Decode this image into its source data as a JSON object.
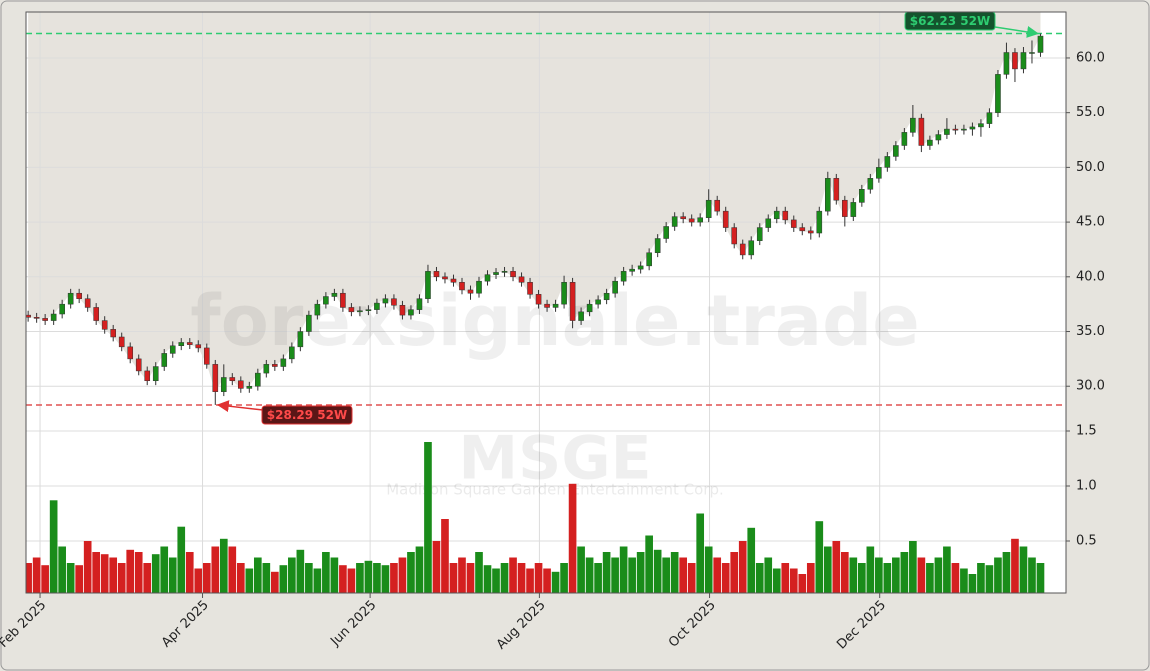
{
  "chart_data": {
    "type": "candlestick",
    "watermark": "forexsignale.trade",
    "symbol": "MSGE",
    "company_name": "Madison Square Garden Entertainment Corp.",
    "up_color": "#1a8c1a",
    "down_color": "#d42020",
    "area_color": "#e6e3dd",
    "grid": true,
    "xlim": [
      -0.25,
      122
    ],
    "xticks": [
      {
        "value": 1.4,
        "label": "Feb 2025"
      },
      {
        "value": 20.5,
        "label": "Apr 2025"
      },
      {
        "value": 40.2,
        "label": "Jun 2025"
      },
      {
        "value": 60.1,
        "label": "Aug 2025"
      },
      {
        "value": 80.1,
        "label": "Oct 2025"
      },
      {
        "value": 100.1,
        "label": "Dec 2025"
      }
    ],
    "ylim": [
      26,
      64.2
    ],
    "yticks": [
      {
        "value": 30,
        "label": "30.0"
      },
      {
        "value": 35,
        "label": "35.0"
      },
      {
        "value": 40,
        "label": "40.0"
      },
      {
        "value": 45,
        "label": "45.0"
      },
      {
        "value": 50,
        "label": "50.0"
      },
      {
        "value": 55,
        "label": "55.0"
      },
      {
        "value": 60,
        "label": "60.0"
      }
    ],
    "high_52w": {
      "value": 62.23,
      "label": "$62.23 52W",
      "color": "#2ecc71"
    },
    "low_52w": {
      "value": 28.29,
      "label": "$28.29 52W",
      "color": "#e05050"
    },
    "open": [
      36.5,
      36.3,
      36.2,
      36.0,
      36.6,
      37.5,
      38.5,
      38.0,
      37.2,
      36.0,
      35.2,
      34.5,
      33.6,
      32.5,
      31.4,
      30.5,
      31.8,
      33.0,
      33.7,
      34.0,
      33.8,
      33.5,
      32.0,
      29.5,
      30.8,
      30.5,
      29.8,
      30.0,
      31.2,
      32.0,
      31.8,
      32.5,
      33.6,
      35.0,
      36.5,
      37.5,
      38.2,
      38.5,
      37.2,
      36.8,
      36.9,
      37.0,
      37.6,
      38.0,
      37.4,
      36.5,
      37.0,
      38.0,
      40.5,
      40.0,
      39.8,
      39.5,
      38.8,
      38.5,
      39.6,
      40.2,
      40.4,
      40.5,
      40.0,
      39.5,
      38.4,
      37.5,
      37.2,
      37.5,
      39.5,
      36.0,
      36.8,
      37.5,
      37.9,
      38.5,
      39.6,
      40.5,
      40.7,
      41.0,
      42.2,
      43.5,
      44.6,
      45.5,
      45.3,
      45.0,
      45.4,
      47.0,
      46.0,
      44.5,
      43.0,
      42.0,
      43.3,
      44.5,
      45.3,
      46.0,
      45.2,
      44.5,
      44.2,
      44.0,
      46.0,
      49.0,
      47.0,
      45.5,
      46.8,
      48.0,
      49.0,
      50.0,
      51.0,
      52.0,
      53.2,
      54.5,
      52.0,
      52.5,
      53.0,
      53.5,
      53.4,
      53.5,
      53.7,
      54.0,
      55.0,
      58.5,
      60.5,
      59.0,
      60.5,
      60.5
    ],
    "high": [
      36.9,
      36.7,
      36.6,
      37.0,
      37.9,
      38.9,
      38.9,
      38.4,
      37.6,
      36.4,
      35.6,
      34.9,
      34.0,
      32.9,
      31.8,
      32.2,
      33.4,
      34.1,
      34.4,
      34.4,
      34.2,
      33.9,
      32.4,
      32.0,
      31.2,
      30.9,
      30.4,
      31.6,
      32.4,
      32.4,
      32.9,
      34.0,
      35.4,
      36.9,
      37.9,
      38.6,
      38.9,
      38.9,
      37.6,
      37.3,
      37.4,
      38.0,
      38.4,
      38.4,
      37.8,
      37.4,
      38.4,
      41.1,
      40.9,
      40.4,
      40.2,
      39.9,
      39.2,
      40.0,
      40.6,
      40.8,
      40.9,
      40.9,
      40.4,
      39.9,
      38.8,
      37.9,
      37.9,
      40.1,
      39.9,
      37.2,
      37.9,
      38.3,
      38.9,
      40.0,
      40.9,
      41.1,
      41.4,
      42.6,
      43.9,
      45.0,
      45.9,
      45.9,
      45.7,
      45.8,
      48.0,
      47.4,
      46.4,
      44.9,
      43.4,
      43.7,
      44.9,
      45.7,
      46.4,
      46.4,
      45.6,
      44.9,
      44.6,
      46.4,
      49.6,
      49.4,
      47.4,
      47.2,
      48.4,
      49.4,
      50.8,
      51.4,
      52.4,
      53.6,
      55.7,
      54.9,
      52.9,
      53.4,
      54.5,
      53.9,
      53.9,
      54.1,
      54.4,
      55.4,
      58.9,
      61.4,
      60.9,
      61.0,
      61.6,
      62.23
    ],
    "low": [
      35.9,
      35.8,
      35.6,
      35.6,
      36.2,
      37.1,
      37.6,
      36.8,
      35.6,
      34.8,
      34.1,
      33.2,
      32.1,
      31.0,
      30.1,
      30.1,
      31.4,
      32.6,
      33.3,
      33.4,
      33.1,
      31.6,
      28.29,
      29.1,
      30.1,
      29.4,
      29.4,
      29.6,
      30.8,
      31.4,
      31.4,
      32.1,
      33.2,
      34.6,
      36.1,
      37.1,
      37.8,
      36.8,
      36.4,
      36.4,
      36.5,
      36.6,
      37.2,
      37.0,
      36.1,
      36.1,
      36.6,
      37.6,
      39.6,
      39.4,
      39.1,
      38.4,
      37.9,
      38.1,
      39.2,
      39.8,
      40.0,
      39.6,
      39.1,
      38.0,
      37.1,
      36.8,
      36.8,
      37.1,
      35.3,
      35.6,
      36.4,
      37.1,
      37.5,
      38.1,
      39.2,
      40.1,
      40.3,
      40.6,
      41.8,
      43.1,
      44.2,
      44.9,
      44.6,
      44.6,
      45.0,
      45.6,
      44.1,
      42.6,
      41.6,
      41.6,
      42.9,
      44.1,
      44.9,
      44.8,
      44.1,
      43.8,
      43.4,
      43.6,
      45.6,
      46.6,
      44.6,
      45.1,
      46.4,
      47.6,
      48.6,
      49.6,
      50.6,
      51.6,
      52.8,
      51.4,
      51.6,
      52.1,
      52.6,
      53.0,
      53.0,
      52.9,
      52.8,
      53.6,
      54.6,
      58.1,
      57.8,
      58.6,
      59.5,
      60.1
    ],
    "close": [
      36.3,
      36.2,
      36.0,
      36.6,
      37.5,
      38.5,
      38.0,
      37.2,
      36.0,
      35.2,
      34.5,
      33.6,
      32.5,
      31.4,
      30.5,
      31.8,
      33.0,
      33.7,
      34.0,
      33.8,
      33.5,
      32.0,
      29.5,
      30.8,
      30.5,
      29.8,
      30.0,
      31.2,
      32.0,
      31.8,
      32.5,
      33.6,
      35.0,
      36.5,
      37.5,
      38.2,
      38.5,
      37.2,
      36.8,
      36.9,
      37.0,
      37.6,
      38.0,
      37.4,
      36.5,
      37.0,
      38.0,
      40.5,
      40.0,
      39.8,
      39.5,
      38.8,
      38.5,
      39.6,
      40.2,
      40.4,
      40.5,
      40.0,
      39.5,
      38.4,
      37.5,
      37.2,
      37.5,
      39.5,
      36.0,
      36.8,
      37.5,
      37.9,
      38.5,
      39.6,
      40.5,
      40.7,
      41.0,
      42.2,
      43.5,
      44.6,
      45.5,
      45.3,
      45.0,
      45.4,
      47.0,
      46.0,
      44.5,
      43.0,
      42.0,
      43.3,
      44.5,
      45.3,
      46.0,
      45.2,
      44.5,
      44.2,
      44.0,
      46.0,
      49.0,
      47.0,
      45.5,
      46.8,
      48.0,
      49.0,
      50.0,
      51.0,
      52.0,
      53.2,
      54.5,
      52.0,
      52.5,
      53.0,
      53.5,
      53.4,
      53.5,
      53.7,
      54.0,
      55.0,
      58.5,
      60.5,
      59.0,
      60.5,
      60.5,
      62.0
    ],
    "volume": {
      "ylim": [
        0,
        1.5
      ],
      "yticks": [
        0.5,
        {
          "value": 1,
          "label": "1.0"
        },
        1.5
      ],
      "values": [
        0.3,
        0.35,
        0.28,
        0.87,
        0.45,
        0.3,
        0.28,
        0.5,
        0.4,
        0.38,
        0.35,
        0.3,
        0.42,
        0.4,
        0.3,
        0.38,
        0.45,
        0.35,
        0.63,
        0.4,
        0.25,
        0.3,
        0.45,
        0.52,
        0.45,
        0.3,
        0.25,
        0.35,
        0.3,
        0.22,
        0.28,
        0.35,
        0.42,
        0.3,
        0.25,
        0.4,
        0.35,
        0.28,
        0.25,
        0.3,
        0.32,
        0.3,
        0.28,
        0.3,
        0.35,
        0.4,
        0.45,
        1.4,
        0.5,
        0.7,
        0.3,
        0.35,
        0.3,
        0.4,
        0.28,
        0.25,
        0.3,
        0.35,
        0.3,
        0.25,
        0.3,
        0.25,
        0.22,
        0.3,
        1.02,
        0.45,
        0.35,
        0.3,
        0.4,
        0.35,
        0.45,
        0.35,
        0.4,
        0.55,
        0.42,
        0.35,
        0.4,
        0.35,
        0.3,
        0.75,
        0.45,
        0.35,
        0.3,
        0.4,
        0.5,
        0.62,
        0.3,
        0.35,
        0.25,
        0.3,
        0.25,
        0.2,
        0.3,
        0.68,
        0.45,
        0.5,
        0.4,
        0.35,
        0.3,
        0.45,
        0.35,
        0.3,
        0.35,
        0.4,
        0.5,
        0.35,
        0.3,
        0.35,
        0.45,
        0.3,
        0.25,
        0.2,
        0.3,
        0.28,
        0.35,
        0.4,
        0.52,
        0.45,
        0.35,
        0.3
      ]
    }
  }
}
